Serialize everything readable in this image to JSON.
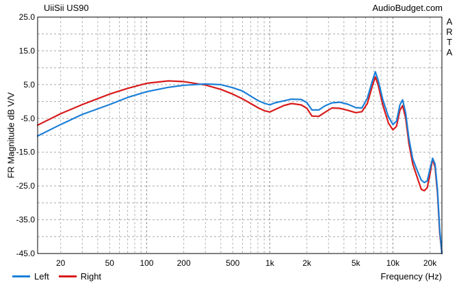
{
  "header": {
    "title": "UiiSii US90",
    "brand": "AudioBudget.com",
    "software": [
      "A",
      "R",
      "T",
      "A"
    ]
  },
  "chart_data": {
    "type": "line",
    "xscale": "log",
    "xlim": [
      13,
      25000
    ],
    "ylim": [
      -45,
      25
    ],
    "ylabel": "FR Magnitude dB V/V",
    "xlabel": "Frequency (Hz)",
    "xticks": [
      20,
      50,
      100,
      200,
      500,
      1000,
      2000,
      5000,
      10000,
      20000
    ],
    "xtick_labels": [
      "20",
      "50",
      "100",
      "200",
      "500",
      "1k",
      "2k",
      "5k",
      "10k",
      "20k"
    ],
    "yticks": [
      25,
      15,
      5,
      -5,
      -15,
      -25,
      -35,
      -45
    ],
    "ytick_labels": [
      "25.0",
      "15.0",
      "5.0",
      "-5.0",
      "-15.0",
      "-25.0",
      "-35.0",
      "-45.0"
    ],
    "grid": true,
    "legend": "bottom-left",
    "series": [
      {
        "name": "Left",
        "color": "#1a7fd8",
        "points": [
          [
            13,
            -10.2
          ],
          [
            20,
            -6.8
          ],
          [
            30,
            -3.8
          ],
          [
            50,
            -0.9
          ],
          [
            70,
            1.2
          ],
          [
            100,
            2.9
          ],
          [
            150,
            4.2
          ],
          [
            200,
            4.8
          ],
          [
            300,
            5.2
          ],
          [
            400,
            5.0
          ],
          [
            500,
            4.1
          ],
          [
            600,
            3.1
          ],
          [
            700,
            1.6
          ],
          [
            800,
            0.3
          ],
          [
            900,
            -0.5
          ],
          [
            1000,
            -1.0
          ],
          [
            1100,
            -0.4
          ],
          [
            1300,
            0.2
          ],
          [
            1500,
            0.7
          ],
          [
            1800,
            0.6
          ],
          [
            2000,
            -0.3
          ],
          [
            2200,
            -2.5
          ],
          [
            2500,
            -2.5
          ],
          [
            2800,
            -1.3
          ],
          [
            3200,
            -0.4
          ],
          [
            3700,
            -0.2
          ],
          [
            4300,
            -0.8
          ],
          [
            5000,
            -1.8
          ],
          [
            5600,
            -1.9
          ],
          [
            6200,
            1.0
          ],
          [
            6800,
            6.0
          ],
          [
            7200,
            8.8
          ],
          [
            7600,
            6.2
          ],
          [
            8300,
            0.4
          ],
          [
            9200,
            -4.5
          ],
          [
            10000,
            -6.8
          ],
          [
            10700,
            -5.8
          ],
          [
            11400,
            -1.0
          ],
          [
            12000,
            0.5
          ],
          [
            12700,
            -3.5
          ],
          [
            13500,
            -11.0
          ],
          [
            14500,
            -17.0
          ],
          [
            16000,
            -21.0
          ],
          [
            17000,
            -23.3
          ],
          [
            18000,
            -24.0
          ],
          [
            19000,
            -23.5
          ],
          [
            20000,
            -20.0
          ],
          [
            21000,
            -16.8
          ],
          [
            22000,
            -18.5
          ],
          [
            23000,
            -26.0
          ],
          [
            24000,
            -38.0
          ],
          [
            25000,
            -45.0
          ]
        ]
      },
      {
        "name": "Right",
        "color": "#d81a1a",
        "points": [
          [
            13,
            -7.0
          ],
          [
            20,
            -3.6
          ],
          [
            30,
            -0.9
          ],
          [
            50,
            2.2
          ],
          [
            70,
            3.9
          ],
          [
            100,
            5.4
          ],
          [
            150,
            6.1
          ],
          [
            200,
            5.9
          ],
          [
            300,
            4.9
          ],
          [
            400,
            3.6
          ],
          [
            500,
            2.2
          ],
          [
            600,
            0.8
          ],
          [
            700,
            -0.6
          ],
          [
            800,
            -1.8
          ],
          [
            900,
            -2.7
          ],
          [
            1000,
            -3.1
          ],
          [
            1100,
            -2.4
          ],
          [
            1300,
            -1.2
          ],
          [
            1500,
            -0.6
          ],
          [
            1800,
            -1.0
          ],
          [
            2000,
            -2.0
          ],
          [
            2200,
            -4.3
          ],
          [
            2500,
            -4.4
          ],
          [
            2800,
            -3.2
          ],
          [
            3200,
            -1.9
          ],
          [
            3700,
            -2.0
          ],
          [
            4300,
            -2.6
          ],
          [
            5000,
            -3.3
          ],
          [
            5600,
            -3.0
          ],
          [
            6200,
            -0.6
          ],
          [
            6800,
            4.5
          ],
          [
            7200,
            7.3
          ],
          [
            7600,
            4.8
          ],
          [
            8300,
            -1.2
          ],
          [
            9200,
            -6.4
          ],
          [
            10000,
            -8.4
          ],
          [
            10700,
            -7.3
          ],
          [
            11400,
            -2.6
          ],
          [
            12000,
            -1.2
          ],
          [
            12700,
            -5.0
          ],
          [
            13500,
            -12.5
          ],
          [
            14500,
            -18.5
          ],
          [
            16000,
            -23.2
          ],
          [
            17000,
            -26.0
          ],
          [
            18000,
            -26.4
          ],
          [
            19000,
            -25.5
          ],
          [
            20000,
            -21.5
          ],
          [
            21000,
            -17.0
          ],
          [
            22000,
            -19.5
          ],
          [
            23000,
            -27.0
          ],
          [
            24000,
            -39.0
          ],
          [
            25000,
            -45.0
          ]
        ]
      }
    ]
  }
}
